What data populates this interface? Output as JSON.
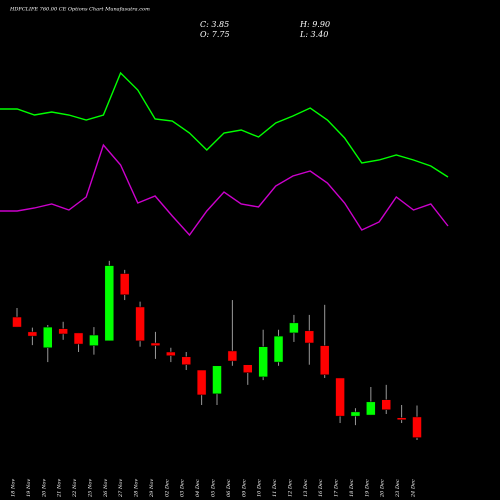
{
  "chart_data": {
    "type": "candlestick",
    "title": "HDFCLIFE 760.00 CE Options Chart Munafasutra.com",
    "summary": [
      "C: 3.85",
      "H: 9.90",
      "O: 7.75",
      "L: 3.40"
    ],
    "categories": [
      "18 Nov",
      "19 Nov",
      "20 Nov",
      "21 Nov",
      "22 Nov",
      "25 Nov",
      "26 Nov",
      "27 Nov",
      "28 Nov",
      "29 Nov",
      "02 Dec",
      "03 Dec",
      "04 Dec",
      "05 Dec",
      "06 Dec",
      "09 Dec",
      "10 Dec",
      "11 Dec",
      "12 Dec",
      "13 Dec",
      "16 Dec",
      "17 Dec",
      "18 Dec",
      "19 Dec",
      "20 Dec",
      "23 Dec",
      "24 Dec"
    ],
    "open": [
      26.6,
      23.8,
      20.8,
      24.4,
      23.6,
      21.2,
      22.1,
      34.8,
      28.5,
      21.7,
      20.0,
      19.1,
      16.6,
      12.1,
      20.2,
      17.6,
      15.3,
      18.1,
      23.6,
      24.0,
      21.2,
      15.1,
      7.9,
      8.1,
      11.0,
      7.6,
      7.75
    ],
    "high": [
      28.3,
      24.6,
      25.1,
      25.7,
      23.6,
      24.7,
      37.2,
      35.5,
      29.5,
      23.8,
      20.8,
      20.0,
      16.6,
      17.4,
      29.8,
      17.6,
      24.2,
      24.2,
      27.0,
      27.0,
      28.9,
      15.1,
      9.4,
      13.4,
      13.8,
      10.0,
      9.9
    ],
    "low": [
      24.7,
      21.3,
      18.1,
      22.3,
      20.0,
      19.5,
      22.1,
      29.8,
      21.0,
      18.7,
      18.1,
      16.6,
      10.0,
      10.0,
      17.4,
      13.8,
      14.7,
      17.4,
      21.9,
      17.6,
      15.1,
      6.6,
      6.2,
      8.1,
      8.3,
      6.6,
      3.4
    ],
    "close": [
      24.7,
      23.0,
      24.7,
      23.4,
      21.5,
      23.2,
      36.3,
      30.8,
      22.1,
      21.2,
      19.3,
      17.6,
      11.9,
      17.4,
      18.3,
      16.1,
      21.0,
      23.0,
      25.5,
      21.7,
      15.7,
      7.9,
      8.7,
      10.6,
      9.1,
      7.2,
      3.85
    ],
    "up_color": "#00ff00",
    "down_color": "#ff0000",
    "ylim": [
      0,
      40
    ],
    "series": [
      {
        "color": "#00ff00",
        "axis": "y2",
        "values": [
          191,
          191,
          185,
          188,
          185,
          180,
          185,
          227,
          210,
          181,
          179,
          167,
          150,
          167,
          170,
          163,
          177,
          184,
          192,
          180,
          162,
          137,
          140,
          145,
          140,
          134,
          123
        ]
      },
      {
        "color": "#cc00cc",
        "axis": "y2",
        "values": [
          89,
          89,
          92,
          96,
          90,
          103,
          155,
          135,
          97,
          104,
          84,
          65,
          89,
          108,
          96,
          93,
          114,
          124,
          129,
          117,
          97,
          70,
          78,
          103,
          90,
          96,
          74
        ]
      }
    ],
    "y2lim": [
      0,
      300
    ]
  }
}
